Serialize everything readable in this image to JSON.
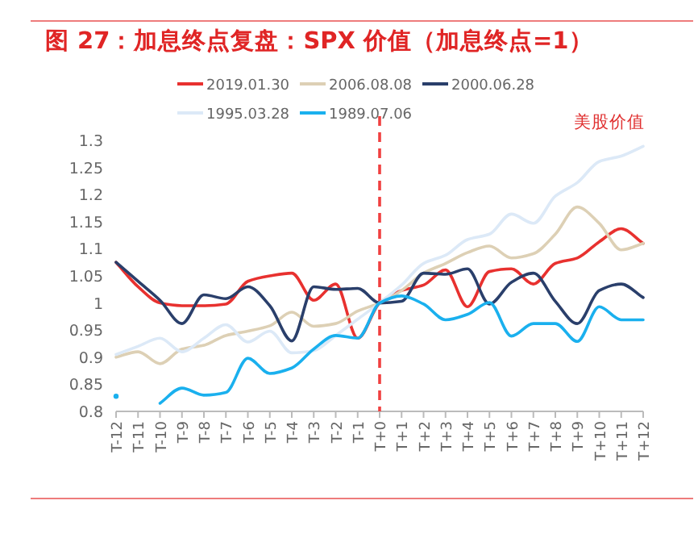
{
  "chart_data": {
    "type": "line",
    "title": "图 27：加息终点复盘：SPX 价值（加息终点=1）",
    "categories": [
      "T-12",
      "T-11",
      "T-10",
      "T-9",
      "T-8",
      "T-7",
      "T-6",
      "T-5",
      "T-4",
      "T-3",
      "T-2",
      "T-1",
      "T+0",
      "T+1",
      "T+2",
      "T+3",
      "T+4",
      "T+5",
      "T+6",
      "T+7",
      "T+8",
      "T+9",
      "T+10",
      "T+11",
      "T+12"
    ],
    "series": [
      {
        "name": "2019.01.30",
        "color": "#e8312f",
        "values": [
          1.075,
          1.03,
          1.0,
          0.995,
          0.995,
          0.998,
          1.04,
          1.05,
          1.055,
          1.005,
          1.035,
          0.935,
          1.0,
          1.023,
          1.033,
          1.061,
          0.993,
          1.058,
          1.063,
          1.035,
          1.073,
          1.083,
          1.113,
          1.137,
          1.11
        ]
      },
      {
        "name": "2006.08.08",
        "color": "#ddd0b5",
        "values": [
          0.9,
          0.91,
          0.888,
          0.915,
          0.922,
          0.94,
          0.948,
          0.958,
          0.983,
          0.957,
          0.962,
          0.985,
          1.0,
          1.023,
          1.055,
          1.073,
          1.093,
          1.105,
          1.083,
          1.091,
          1.127,
          1.177,
          1.147,
          1.098,
          1.11
        ]
      },
      {
        "name": "2000.06.28",
        "color": "#2a3f6b",
        "values": [
          1.075,
          1.04,
          1.005,
          0.962,
          1.015,
          1.008,
          1.03,
          0.995,
          0.93,
          1.03,
          1.025,
          1.027,
          1.0,
          1.003,
          1.055,
          1.053,
          1.063,
          0.998,
          1.038,
          1.055,
          1.003,
          0.962,
          1.023,
          1.035,
          1.01
        ]
      },
      {
        "name": "1995.03.28",
        "color": "#dce9f7",
        "values": [
          0.905,
          0.92,
          0.935,
          0.91,
          0.935,
          0.96,
          0.928,
          0.948,
          0.908,
          0.912,
          0.94,
          0.97,
          1.0,
          1.033,
          1.073,
          1.088,
          1.117,
          1.127,
          1.164,
          1.147,
          1.197,
          1.222,
          1.261,
          1.271,
          1.289
        ]
      },
      {
        "name": "1989.07.06",
        "color": "#1ab0ee",
        "values": [
          0.828,
          null,
          0.815,
          0.843,
          0.83,
          0.835,
          0.898,
          0.87,
          0.88,
          0.915,
          0.94,
          0.935,
          1.0,
          1.013,
          0.998,
          0.969,
          0.979,
          1.001,
          0.939,
          0.962,
          0.962,
          0.929,
          0.993,
          0.969,
          0.969
        ]
      }
    ],
    "ylim": [
      0.8,
      1.3
    ],
    "yticks": [
      0.8,
      0.85,
      0.9,
      0.95,
      1,
      1.05,
      1.1,
      1.15,
      1.2,
      1.25,
      1.3
    ],
    "ref_lines": [
      {
        "axis": "x",
        "value": "T+0",
        "color": "#f04040",
        "line_style": "dashed"
      }
    ],
    "annotations": [
      "美股价值"
    ],
    "legend": "top",
    "grid": false
  }
}
